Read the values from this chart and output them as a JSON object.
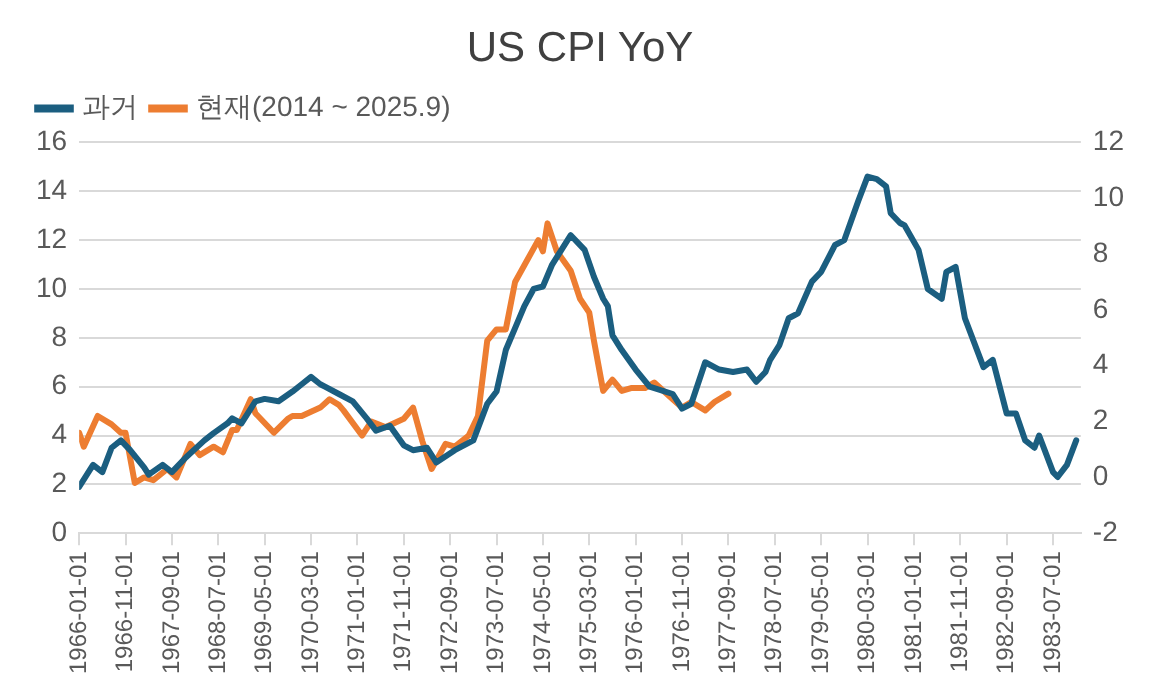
{
  "chart_data": {
    "type": "line",
    "title": "US CPI YoY",
    "legend": "top left",
    "grid": "y",
    "marker": "none",
    "line_style": "solid",
    "xlim": [
      "1966-01",
      "1984-01"
    ],
    "xticks": [
      "1966-01-01",
      "1966-11-01",
      "1967-09-01",
      "1968-07-01",
      "1969-05-01",
      "1970-03-01",
      "1971-01-01",
      "1971-11-01",
      "1972-09-01",
      "1973-07-01",
      "1974-05-01",
      "1975-03-01",
      "1976-01-01",
      "1976-11-01",
      "1977-09-01",
      "1978-07-01",
      "1979-05-01",
      "1980-03-01",
      "1981-01-01",
      "1981-11-01",
      "1982-09-01",
      "1983-07-01"
    ],
    "ylim": [
      0,
      16
    ],
    "yticks": [
      0,
      2,
      4,
      6,
      8,
      10,
      12,
      14,
      16
    ],
    "y2lim": [
      -2,
      12
    ],
    "y2ticks": [
      -2,
      0,
      2,
      4,
      6,
      8,
      10,
      12
    ],
    "series": [
      {
        "name": "과거",
        "color": "#1b5e80",
        "x": [
          "1966-01",
          "1966-04",
          "1966-06",
          "1966-08",
          "1966-10",
          "1966-12",
          "1967-03",
          "1967-04",
          "1967-07",
          "1967-09",
          "1967-12",
          "1968-04",
          "1968-06",
          "1968-09",
          "1968-10",
          "1968-12",
          "1969-03",
          "1969-05",
          "1969-08",
          "1969-11",
          "1970-01",
          "1970-03",
          "1970-05",
          "1970-06",
          "1970-09",
          "1970-12",
          "1971-03",
          "1971-05",
          "1971-08",
          "1971-11",
          "1972-01",
          "1972-04",
          "1972-06",
          "1972-10",
          "1973-02",
          "1973-05",
          "1973-07",
          "1973-09",
          "1973-11",
          "1974-01",
          "1974-03",
          "1974-05",
          "1974-07",
          "1974-09",
          "1974-11",
          "1975-02",
          "1975-04",
          "1975-06",
          "1975-07",
          "1975-08",
          "1975-10",
          "1976-01",
          "1976-04",
          "1976-09",
          "1976-11",
          "1977-01",
          "1977-04",
          "1977-07",
          "1977-10",
          "1978-01",
          "1978-03",
          "1978-05",
          "1978-06",
          "1978-08",
          "1978-10",
          "1978-12",
          "1979-03",
          "1979-05",
          "1979-08",
          "1979-10",
          "1980-01",
          "1980-03",
          "1980-05",
          "1980-07",
          "1980-08",
          "1980-10",
          "1980-11",
          "1981-02",
          "1981-04",
          "1981-07",
          "1981-08",
          "1981-10",
          "1981-12",
          "1982-04",
          "1982-06",
          "1982-09",
          "1982-11",
          "1983-01",
          "1983-03",
          "1983-04",
          "1983-07",
          "1983-08",
          "1983-10",
          "1983-12"
        ],
        "values": [
          1.9,
          2.8,
          2.5,
          3.5,
          3.8,
          3.4,
          2.7,
          2.4,
          2.8,
          2.5,
          3.1,
          3.8,
          4.1,
          4.5,
          4.7,
          4.5,
          5.4,
          5.5,
          5.4,
          5.8,
          6.1,
          6.4,
          6.1,
          6.0,
          5.7,
          5.4,
          4.7,
          4.2,
          4.4,
          3.6,
          3.4,
          3.5,
          2.9,
          3.4,
          3.8,
          5.3,
          5.8,
          7.5,
          8.4,
          9.3,
          10.0,
          10.1,
          11.0,
          11.6,
          12.2,
          11.6,
          10.5,
          9.6,
          9.3,
          8.1,
          7.5,
          6.7,
          6.0,
          5.7,
          5.1,
          5.3,
          7.0,
          6.7,
          6.6,
          6.7,
          6.2,
          6.6,
          7.1,
          7.7,
          8.8,
          9.0,
          10.3,
          10.7,
          11.8,
          12.0,
          13.6,
          14.6,
          14.5,
          14.2,
          13.1,
          12.7,
          12.6,
          11.6,
          10.0,
          9.6,
          10.7,
          10.9,
          8.8,
          6.8,
          7.1,
          4.9,
          4.9,
          3.8,
          3.5,
          4.0,
          2.5,
          2.3,
          2.8,
          3.8
        ]
      },
      {
        "name": "현재(2014 ~ 2025.9)",
        "color": "#ed7d31",
        "axis": "y2",
        "x": [
          "1966-01",
          "1966-02",
          "1966-05",
          "1966-08",
          "1966-10",
          "1966-11",
          "1967-01",
          "1967-03",
          "1967-05",
          "1967-08",
          "1967-10",
          "1968-01",
          "1968-03",
          "1968-06",
          "1968-08",
          "1968-10",
          "1968-11",
          "1969-02",
          "1969-03",
          "1969-07",
          "1969-10",
          "1969-11",
          "1970-01",
          "1970-05",
          "1970-07",
          "1970-09",
          "1970-10",
          "1971-02",
          "1971-04",
          "1971-07",
          "1971-11",
          "1972-01",
          "1972-03",
          "1972-05",
          "1972-08",
          "1972-10",
          "1973-01",
          "1973-03",
          "1973-05",
          "1973-07",
          "1973-09",
          "1973-11",
          "1974-01",
          "1974-04",
          "1974-05",
          "1974-06",
          "1974-08",
          "1974-11",
          "1975-01",
          "1975-03",
          "1975-04",
          "1975-06",
          "1975-08",
          "1975-10",
          "1975-12",
          "1976-03",
          "1976-05",
          "1976-09",
          "1976-11",
          "1977-01",
          "1977-04",
          "1977-06",
          "1977-09"
        ],
        "values": [
          1.6,
          1.1,
          2.2,
          1.9,
          1.6,
          1.6,
          -0.2,
          0.0,
          -0.1,
          0.3,
          0.0,
          1.2,
          0.8,
          1.1,
          0.9,
          1.7,
          1.7,
          2.8,
          2.3,
          1.6,
          2.1,
          2.2,
          2.2,
          2.5,
          2.8,
          2.6,
          2.4,
          1.5,
          2.0,
          1.8,
          2.1,
          2.5,
          1.3,
          0.3,
          1.2,
          1.1,
          1.5,
          2.2,
          4.9,
          5.3,
          5.3,
          7.0,
          7.6,
          8.5,
          8.1,
          9.1,
          8.1,
          7.4,
          6.4,
          5.9,
          4.9,
          3.1,
          3.5,
          3.1,
          3.2,
          3.2,
          3.4,
          2.8,
          2.5,
          2.7,
          2.4,
          2.7,
          3.0
        ]
      }
    ]
  }
}
